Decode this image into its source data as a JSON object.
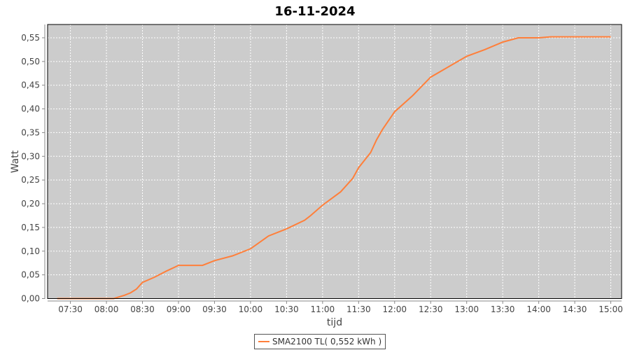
{
  "chart_data": {
    "type": "line",
    "title": "16-11-2024",
    "xlabel": "tijd",
    "ylabel": "Watt",
    "xlim": [
      "07:11",
      "15:09"
    ],
    "ylim": [
      0,
      0.578
    ],
    "x_ticks": [
      "07:30",
      "08:00",
      "08:30",
      "09:00",
      "09:30",
      "10:00",
      "10:30",
      "11:00",
      "11:30",
      "12:00",
      "12:30",
      "13:00",
      "13:30",
      "14:00",
      "14:30",
      "15:00"
    ],
    "y_ticks": [
      "0,00",
      "0,05",
      "0,10",
      "0,15",
      "0,20",
      "0,25",
      "0,30",
      "0,35",
      "0,40",
      "0,45",
      "0,50",
      "0,55"
    ],
    "grid": true,
    "background": "#cccccc",
    "legend_position": "bottom",
    "series": [
      {
        "name": "SMA2100 TL( 0,552 kWh )",
        "color": "#ff7f3a",
        "x": [
          "07:19",
          "08:06",
          "08:15",
          "08:20",
          "08:25",
          "08:30",
          "08:40",
          "08:50",
          "08:55",
          "09:00",
          "09:20",
          "09:30",
          "09:45",
          "10:00",
          "10:15",
          "10:30",
          "10:45",
          "10:50",
          "11:00",
          "11:15",
          "11:25",
          "11:30",
          "11:40",
          "11:45",
          "11:50",
          "12:00",
          "12:15",
          "12:30",
          "12:45",
          "13:00",
          "13:15",
          "13:30",
          "13:43",
          "14:00",
          "14:10",
          "15:00"
        ],
        "y": [
          0,
          0,
          0.007,
          0.012,
          0.02,
          0.034,
          0.045,
          0.058,
          0.064,
          0.07,
          0.07,
          0.08,
          0.09,
          0.105,
          0.132,
          0.147,
          0.165,
          0.175,
          0.197,
          0.225,
          0.253,
          0.276,
          0.308,
          0.335,
          0.357,
          0.394,
          0.428,
          0.467,
          0.489,
          0.511,
          0.525,
          0.541,
          0.55,
          0.55,
          0.552,
          0.552
        ]
      }
    ]
  }
}
